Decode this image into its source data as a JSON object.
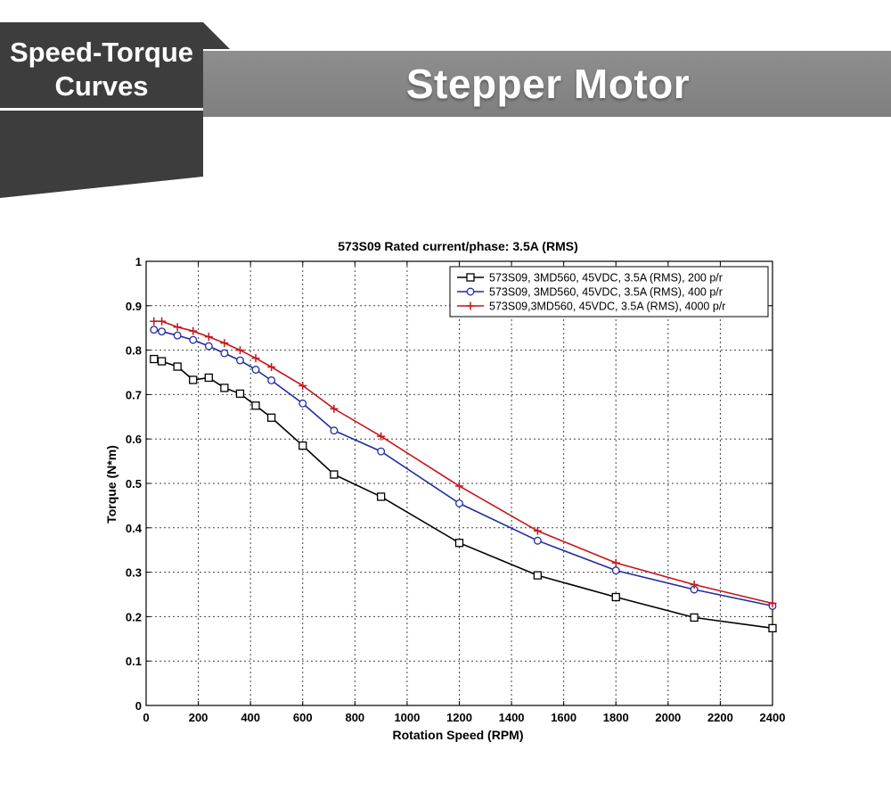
{
  "banner": {
    "tag_line1": "Speed-Torque",
    "tag_line2": "Curves",
    "title": "Stepper Motor",
    "bar_color": "#878787",
    "tag_color": "#3d3d3d"
  },
  "chart_data": {
    "type": "line",
    "title": "573S09 Rated current/phase: 3.5A (RMS)",
    "xlabel": "Rotation Speed (RPM)",
    "ylabel": "Torque (N*m)",
    "xlim": [
      0,
      2400
    ],
    "ylim": [
      0,
      1
    ],
    "xticks": [
      0,
      200,
      400,
      600,
      800,
      1000,
      1200,
      1400,
      1600,
      1800,
      2000,
      2200,
      2400
    ],
    "yticks": [
      0,
      0.1,
      0.2,
      0.3,
      0.4,
      0.5,
      0.6,
      0.7,
      0.8,
      0.9,
      1
    ],
    "xtick_labels": [
      "0",
      "200",
      "400",
      "600",
      "800",
      "1000",
      "1200",
      "1400",
      "1600",
      "1800",
      "2000",
      "2200",
      "2400"
    ],
    "ytick_labels": [
      "0",
      "0.1",
      "0.2",
      "0.3",
      "0.4",
      "0.5",
      "0.6",
      "0.7",
      "0.8",
      "0.9",
      "1"
    ],
    "grid": true,
    "legend_position": "top-right",
    "series": [
      {
        "name": "573S09, 3MD560, 45VDC, 3.5A (RMS), 200 p/r",
        "color": "#000000",
        "marker": "square",
        "x": [
          30,
          60,
          120,
          180,
          240,
          300,
          360,
          420,
          480,
          600,
          720,
          900,
          1200,
          1500,
          1800,
          2100,
          2400
        ],
        "y": [
          0.78,
          0.775,
          0.763,
          0.733,
          0.738,
          0.715,
          0.702,
          0.675,
          0.648,
          0.585,
          0.52,
          0.47,
          0.366,
          0.293,
          0.244,
          0.198,
          0.174
        ]
      },
      {
        "name": "573S09, 3MD560, 45VDC, 3.5A (RMS), 400 p/r",
        "color": "#1f2d9c",
        "marker": "circle",
        "x": [
          30,
          60,
          120,
          180,
          240,
          300,
          360,
          420,
          480,
          600,
          720,
          900,
          1200,
          1500,
          1800,
          2100,
          2400
        ],
        "y": [
          0.846,
          0.842,
          0.833,
          0.823,
          0.809,
          0.793,
          0.777,
          0.756,
          0.732,
          0.68,
          0.619,
          0.572,
          0.455,
          0.371,
          0.304,
          0.261,
          0.224
        ]
      },
      {
        "name": "573S09,3MD560, 45VDC, 3.5A (RMS), 4000 p/r",
        "color": "#c4161c",
        "marker": "plus",
        "x": [
          30,
          60,
          120,
          180,
          240,
          300,
          360,
          420,
          480,
          600,
          720,
          900,
          1200,
          1500,
          1800,
          2100,
          2400
        ],
        "y": [
          0.865,
          0.865,
          0.852,
          0.843,
          0.83,
          0.816,
          0.8,
          0.782,
          0.762,
          0.72,
          0.668,
          0.606,
          0.494,
          0.393,
          0.321,
          0.272,
          0.23
        ]
      }
    ]
  }
}
